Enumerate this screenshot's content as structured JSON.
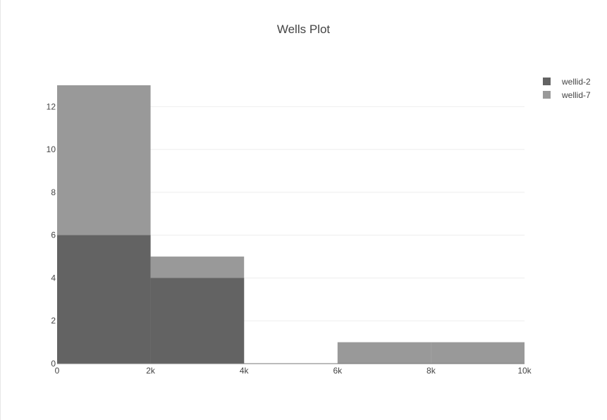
{
  "chart_data": {
    "type": "bar",
    "title": "Wells Plot",
    "xlabel": "",
    "ylabel": "",
    "barmode": "overlay",
    "bin_size": 2000,
    "xlim": [
      0,
      10000
    ],
    "ylim": [
      0,
      13
    ],
    "x_ticks": [
      {
        "value": 0,
        "label": "0"
      },
      {
        "value": 2000,
        "label": "2k"
      },
      {
        "value": 4000,
        "label": "4k"
      },
      {
        "value": 6000,
        "label": "6k"
      },
      {
        "value": 8000,
        "label": "8k"
      },
      {
        "value": 10000,
        "label": "10k"
      }
    ],
    "y_ticks": [
      {
        "value": 0,
        "label": "0"
      },
      {
        "value": 2,
        "label": "2"
      },
      {
        "value": 4,
        "label": "4"
      },
      {
        "value": 6,
        "label": "6"
      },
      {
        "value": 8,
        "label": "8"
      },
      {
        "value": 10,
        "label": "10"
      },
      {
        "value": 12,
        "label": "12"
      }
    ],
    "grid": true,
    "legend_position": "top-right",
    "series": [
      {
        "name": "wellid-7",
        "color": "#999999",
        "bins": [
          [
            0,
            2000
          ],
          [
            2000,
            4000
          ],
          [
            4000,
            6000
          ],
          [
            6000,
            8000
          ],
          [
            8000,
            10000
          ]
        ],
        "values": [
          13,
          5,
          0,
          1,
          1
        ]
      },
      {
        "name": "wellid-2",
        "color": "#636363",
        "bins": [
          [
            0,
            2000
          ],
          [
            2000,
            4000
          ]
        ],
        "values": [
          6,
          4
        ]
      }
    ]
  }
}
